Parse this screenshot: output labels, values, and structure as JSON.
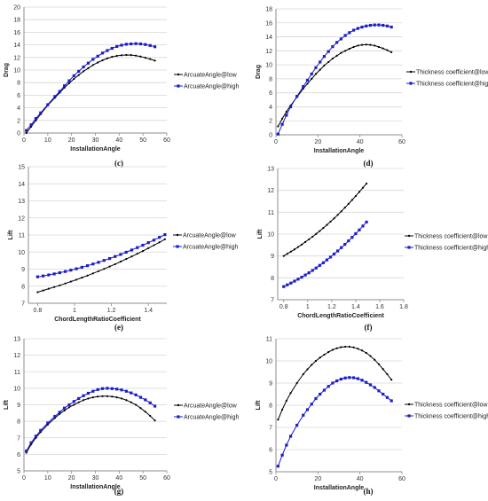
{
  "colors": {
    "low": "#000000",
    "high": "#1c1ccc",
    "grid": "#d6d6d6",
    "axis": "#8c8c8c"
  },
  "chart_data": [
    {
      "type": "line",
      "caption": "(c)",
      "xlabel": "InstallationAngle",
      "ylabel": "Drag",
      "xlim": [
        0,
        60
      ],
      "ylim": [
        0,
        20
      ],
      "xticks": [
        0,
        10,
        20,
        30,
        40,
        50,
        60
      ],
      "yticks": [
        0,
        2,
        4,
        6,
        8,
        10,
        12,
        14,
        16,
        18,
        20
      ],
      "grid": true,
      "legend": "right",
      "series": [
        {
          "name": "ArcuateAngle@low",
          "style": "low",
          "x": [
            1,
            3,
            5,
            7,
            10,
            13,
            15,
            17,
            19,
            21,
            23,
            25,
            27,
            29,
            31,
            33,
            35,
            37,
            39,
            41,
            43,
            45,
            47,
            49,
            51,
            53,
            55
          ],
          "y": [
            0.0,
            1.0,
            2.0,
            3.0,
            4.4,
            5.6,
            6.4,
            7.2,
            7.9,
            8.6,
            9.2,
            9.8,
            10.3,
            10.8,
            11.2,
            11.55,
            11.85,
            12.1,
            12.25,
            12.35,
            12.4,
            12.38,
            12.3,
            12.15,
            11.95,
            11.75,
            11.5
          ]
        },
        {
          "name": "ArcuateAngle@high",
          "style": "high",
          "x": [
            1,
            3,
            5,
            7,
            10,
            13,
            15,
            17,
            19,
            21,
            23,
            25,
            27,
            29,
            31,
            33,
            35,
            37,
            39,
            41,
            43,
            45,
            47,
            49,
            51,
            53,
            55
          ],
          "y": [
            0.4,
            1.3,
            2.3,
            3.2,
            4.5,
            5.8,
            6.6,
            7.5,
            8.3,
            9.1,
            9.8,
            10.5,
            11.1,
            11.7,
            12.2,
            12.7,
            13.1,
            13.45,
            13.75,
            13.95,
            14.1,
            14.15,
            14.2,
            14.15,
            14.05,
            13.9,
            13.7
          ]
        }
      ]
    },
    {
      "type": "line",
      "caption": "(d)",
      "xlabel": "InstallationAngle",
      "ylabel": "Drag",
      "xlim": [
        0,
        60
      ],
      "ylim": [
        0,
        18
      ],
      "xticks": [
        0,
        20,
        40,
        60
      ],
      "yticks": [
        0,
        2,
        4,
        6,
        8,
        10,
        12,
        14,
        16,
        18
      ],
      "grid": true,
      "legend": "right",
      "series": [
        {
          "name": "Thickness coefficient@low",
          "style": "low",
          "x": [
            1,
            3,
            5,
            7,
            10,
            13,
            15,
            17,
            19,
            21,
            23,
            25,
            27,
            29,
            31,
            33,
            35,
            37,
            39,
            41,
            43,
            45,
            47,
            49,
            51,
            53,
            55
          ],
          "y": [
            1.2,
            2.3,
            3.3,
            4.2,
            5.4,
            6.6,
            7.3,
            8.0,
            8.7,
            9.3,
            9.9,
            10.4,
            10.9,
            11.3,
            11.7,
            12.0,
            12.3,
            12.55,
            12.75,
            12.85,
            12.9,
            12.85,
            12.75,
            12.55,
            12.35,
            12.1,
            11.8
          ]
        },
        {
          "name": "Thickness coefficient@high",
          "style": "high",
          "x": [
            1,
            3,
            5,
            7,
            10,
            13,
            15,
            17,
            19,
            21,
            23,
            25,
            27,
            29,
            31,
            33,
            35,
            37,
            39,
            41,
            43,
            45,
            47,
            49,
            51,
            53,
            55
          ],
          "y": [
            0.1,
            1.5,
            2.8,
            4.0,
            5.5,
            6.9,
            7.8,
            8.7,
            9.6,
            10.4,
            11.2,
            11.9,
            12.6,
            13.2,
            13.7,
            14.2,
            14.6,
            14.95,
            15.2,
            15.4,
            15.55,
            15.65,
            15.7,
            15.7,
            15.65,
            15.55,
            15.4
          ]
        }
      ]
    },
    {
      "type": "line",
      "caption": "(e)",
      "xlabel": "ChordLengthRatioCoefficient",
      "ylabel": "Lift",
      "xlim": [
        0.75,
        1.5
      ],
      "ylim": [
        7,
        15
      ],
      "xticks": [
        0.8,
        1,
        1.2,
        1.4
      ],
      "yticks": [
        7,
        8,
        9,
        10,
        11,
        12,
        13,
        14,
        15
      ],
      "grid": true,
      "legend": "right",
      "series": [
        {
          "name": "ArcuateAngle@low",
          "style": "low",
          "x": [
            0.8,
            0.83,
            0.86,
            0.89,
            0.92,
            0.95,
            0.98,
            1.01,
            1.04,
            1.07,
            1.1,
            1.13,
            1.16,
            1.19,
            1.22,
            1.25,
            1.28,
            1.31,
            1.34,
            1.37,
            1.4,
            1.43,
            1.46,
            1.49
          ],
          "y": [
            7.65,
            7.75,
            7.85,
            7.95,
            8.05,
            8.16,
            8.27,
            8.38,
            8.5,
            8.62,
            8.75,
            8.88,
            9.01,
            9.15,
            9.29,
            9.44,
            9.59,
            9.74,
            9.9,
            10.06,
            10.23,
            10.4,
            10.57,
            10.75
          ]
        },
        {
          "name": "ArcuateAngle@high",
          "style": "high",
          "x": [
            0.8,
            0.83,
            0.86,
            0.89,
            0.92,
            0.95,
            0.98,
            1.01,
            1.04,
            1.07,
            1.1,
            1.13,
            1.16,
            1.19,
            1.22,
            1.25,
            1.28,
            1.31,
            1.34,
            1.37,
            1.4,
            1.43,
            1.46,
            1.49
          ],
          "y": [
            8.55,
            8.6,
            8.66,
            8.72,
            8.79,
            8.86,
            8.94,
            9.02,
            9.11,
            9.2,
            9.3,
            9.4,
            9.51,
            9.62,
            9.74,
            9.86,
            9.99,
            10.12,
            10.26,
            10.4,
            10.55,
            10.7,
            10.86,
            11.02
          ]
        }
      ]
    },
    {
      "type": "line",
      "caption": "(f)",
      "xlabel": "ChordLengthRatioCoefficient",
      "ylabel": "Lift",
      "xlim": [
        0.75,
        1.8
      ],
      "ylim": [
        7,
        13
      ],
      "xticks": [
        0.8,
        1,
        1.2,
        1.4,
        1.6,
        1.8
      ],
      "yticks": [
        7,
        8,
        9,
        10,
        11,
        12,
        13
      ],
      "grid": true,
      "legend": "right",
      "series": [
        {
          "name": "Thickness coefficient@low",
          "style": "low",
          "x": [
            0.8,
            0.83,
            0.86,
            0.89,
            0.92,
            0.95,
            0.98,
            1.01,
            1.04,
            1.07,
            1.1,
            1.13,
            1.16,
            1.19,
            1.22,
            1.25,
            1.28,
            1.31,
            1.34,
            1.37,
            1.4,
            1.43,
            1.46,
            1.49
          ],
          "y": [
            9.0,
            9.1,
            9.2,
            9.3,
            9.41,
            9.52,
            9.64,
            9.76,
            9.88,
            10.01,
            10.14,
            10.28,
            10.42,
            10.57,
            10.72,
            10.88,
            11.04,
            11.21,
            11.38,
            11.56,
            11.74,
            11.93,
            12.12,
            12.31
          ]
        },
        {
          "name": "Thickness coefficient@high",
          "style": "high",
          "x": [
            0.8,
            0.83,
            0.86,
            0.89,
            0.92,
            0.95,
            0.98,
            1.01,
            1.04,
            1.07,
            1.1,
            1.13,
            1.16,
            1.19,
            1.22,
            1.25,
            1.28,
            1.31,
            1.34,
            1.37,
            1.4,
            1.43,
            1.46,
            1.49
          ],
          "y": [
            7.6,
            7.68,
            7.76,
            7.85,
            7.94,
            8.03,
            8.13,
            8.23,
            8.34,
            8.45,
            8.57,
            8.69,
            8.82,
            8.95,
            9.09,
            9.23,
            9.38,
            9.53,
            9.69,
            9.85,
            10.02,
            10.19,
            10.37,
            10.55
          ]
        }
      ]
    },
    {
      "type": "line",
      "caption": "(g)",
      "xlabel": "InstallationAngle",
      "ylabel": "Lift",
      "xlim": [
        0,
        60
      ],
      "ylim": [
        5,
        13
      ],
      "xticks": [
        0,
        10,
        20,
        30,
        40,
        50,
        60
      ],
      "yticks": [
        5,
        6,
        7,
        8,
        9,
        10,
        11,
        12,
        13
      ],
      "grid": true,
      "legend": "right",
      "series": [
        {
          "name": "ArcuateAngle@low",
          "style": "low",
          "x": [
            1,
            3,
            5,
            7,
            10,
            13,
            15,
            17,
            19,
            21,
            23,
            25,
            27,
            29,
            31,
            33,
            35,
            37,
            39,
            41,
            43,
            45,
            47,
            49,
            51,
            53,
            55
          ],
          "y": [
            6.1,
            6.6,
            7.0,
            7.35,
            7.8,
            8.2,
            8.45,
            8.65,
            8.85,
            9.0,
            9.15,
            9.28,
            9.38,
            9.45,
            9.5,
            9.52,
            9.52,
            9.5,
            9.45,
            9.38,
            9.28,
            9.15,
            9.0,
            8.8,
            8.58,
            8.33,
            8.05
          ]
        },
        {
          "name": "ArcuateAngle@high",
          "style": "high",
          "x": [
            1,
            3,
            5,
            7,
            10,
            13,
            15,
            17,
            19,
            21,
            23,
            25,
            27,
            29,
            31,
            33,
            35,
            37,
            39,
            41,
            43,
            45,
            47,
            49,
            51,
            53,
            55
          ],
          "y": [
            6.2,
            6.7,
            7.1,
            7.45,
            7.9,
            8.3,
            8.55,
            8.8,
            9.0,
            9.2,
            9.38,
            9.55,
            9.7,
            9.82,
            9.92,
            9.98,
            10.0,
            9.98,
            9.95,
            9.9,
            9.82,
            9.72,
            9.6,
            9.45,
            9.3,
            9.12,
            8.92
          ]
        }
      ]
    },
    {
      "type": "line",
      "caption": "(h)",
      "xlabel": "InstallationAngle",
      "ylabel": "Lift",
      "xlim": [
        0,
        60
      ],
      "ylim": [
        5,
        11
      ],
      "xticks": [
        0,
        20,
        40,
        60
      ],
      "yticks": [
        5,
        6,
        7,
        8,
        9,
        10,
        11
      ],
      "grid": true,
      "legend": "right",
      "series": [
        {
          "name": "Thickness coefficient@low",
          "style": "low",
          "x": [
            1,
            3,
            5,
            7,
            10,
            13,
            15,
            17,
            19,
            21,
            23,
            25,
            27,
            29,
            31,
            33,
            35,
            37,
            39,
            41,
            43,
            45,
            47,
            49,
            51,
            53,
            55
          ],
          "y": [
            7.35,
            7.8,
            8.2,
            8.55,
            9.0,
            9.4,
            9.62,
            9.82,
            10.0,
            10.15,
            10.28,
            10.4,
            10.5,
            10.57,
            10.62,
            10.64,
            10.64,
            10.61,
            10.55,
            10.47,
            10.36,
            10.22,
            10.05,
            9.85,
            9.63,
            9.4,
            9.15
          ]
        },
        {
          "name": "Thickness coefficient@high",
          "style": "high",
          "x": [
            1,
            3,
            5,
            7,
            10,
            13,
            15,
            17,
            19,
            21,
            23,
            25,
            27,
            29,
            31,
            33,
            35,
            37,
            39,
            41,
            43,
            45,
            47,
            49,
            51,
            53,
            55
          ],
          "y": [
            5.25,
            5.75,
            6.2,
            6.6,
            7.1,
            7.55,
            7.8,
            8.05,
            8.3,
            8.5,
            8.68,
            8.85,
            9.0,
            9.1,
            9.18,
            9.23,
            9.25,
            9.24,
            9.2,
            9.13,
            9.03,
            8.92,
            8.8,
            8.65,
            8.5,
            8.35,
            8.2
          ]
        }
      ]
    }
  ]
}
